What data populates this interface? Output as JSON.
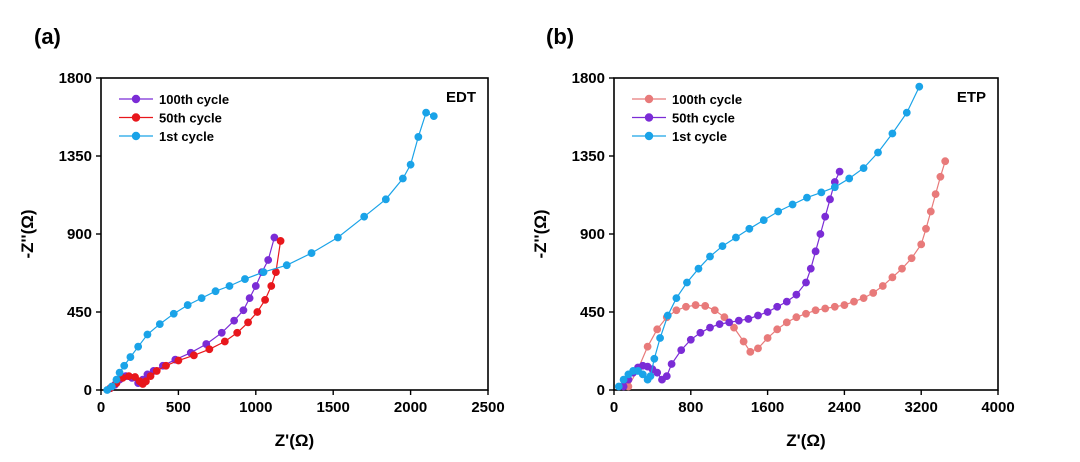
{
  "chart_data": [
    {
      "type": "scatter",
      "panel_label": "(a)",
      "tag": "EDT",
      "xlabel": "Z'(Ω)",
      "ylabel": "-Z''(Ω)",
      "xlim": [
        0,
        2500
      ],
      "ylim": [
        0,
        1800
      ],
      "xticks": [
        "0",
        "500",
        "1000",
        "1500",
        "2000",
        "2500"
      ],
      "yticks": [
        "0",
        "450",
        "900",
        "1350",
        "1800"
      ],
      "legend_position": "top-left",
      "series": [
        {
          "name": "100th cycle",
          "color": "#7b2cd6",
          "x": [
            60,
            90,
            120,
            160,
            200,
            240,
            270,
            300,
            340,
            400,
            480,
            580,
            680,
            780,
            860,
            920,
            960,
            1000,
            1040,
            1080,
            1120
          ],
          "y": [
            10,
            30,
            60,
            80,
            70,
            40,
            60,
            90,
            110,
            140,
            175,
            215,
            265,
            330,
            400,
            460,
            530,
            600,
            680,
            750,
            880
          ]
        },
        {
          "name": "50th cycle",
          "color": "#e8171c",
          "x": [
            60,
            100,
            140,
            180,
            220,
            250,
            270,
            290,
            320,
            360,
            420,
            500,
            600,
            700,
            800,
            880,
            950,
            1010,
            1060,
            1100,
            1130,
            1160
          ],
          "y": [
            10,
            40,
            70,
            80,
            75,
            50,
            35,
            50,
            80,
            110,
            140,
            170,
            200,
            235,
            280,
            330,
            390,
            450,
            520,
            600,
            680,
            860
          ]
        },
        {
          "name": "1st cycle",
          "color": "#1aa3e8",
          "x": [
            40,
            70,
            100,
            120,
            150,
            190,
            240,
            300,
            380,
            470,
            560,
            650,
            740,
            830,
            930,
            1050,
            1200,
            1360,
            1530,
            1700,
            1840,
            1950,
            2000,
            2050,
            2100,
            2150
          ],
          "y": [
            0,
            20,
            60,
            100,
            140,
            190,
            250,
            320,
            380,
            440,
            490,
            530,
            570,
            600,
            640,
            680,
            720,
            790,
            880,
            1000,
            1100,
            1220,
            1300,
            1460,
            1600,
            1580
          ]
        }
      ]
    },
    {
      "type": "scatter",
      "panel_label": "(b)",
      "tag": "ETP",
      "xlabel": "Z'(Ω)",
      "ylabel": "-Z''(Ω)",
      "xlim": [
        0,
        4000
      ],
      "ylim": [
        0,
        1800
      ],
      "xticks": [
        "0",
        "800",
        "1600",
        "2400",
        "3200",
        "4000"
      ],
      "yticks": [
        "0",
        "450",
        "900",
        "1350",
        "1800"
      ],
      "legend_position": "top-left",
      "series": [
        {
          "name": "100th cycle",
          "color": "#e87a7a",
          "x": [
            150,
            250,
            350,
            450,
            550,
            650,
            750,
            850,
            950,
            1050,
            1150,
            1250,
            1350,
            1420,
            1500,
            1600,
            1700,
            1800,
            1900,
            2000,
            2100,
            2200,
            2300,
            2400,
            2500,
            2600,
            2700,
            2800,
            2900,
            3000,
            3100,
            3200,
            3250,
            3300,
            3350,
            3400,
            3450
          ],
          "y": [
            20,
            120,
            250,
            350,
            420,
            460,
            480,
            490,
            485,
            460,
            420,
            360,
            280,
            220,
            240,
            300,
            350,
            390,
            420,
            440,
            460,
            470,
            480,
            490,
            510,
            530,
            560,
            600,
            650,
            700,
            760,
            840,
            930,
            1030,
            1130,
            1230,
            1320
          ]
        },
        {
          "name": "50th cycle",
          "color": "#7b2cd6",
          "x": [
            100,
            150,
            200,
            250,
            300,
            350,
            400,
            450,
            500,
            550,
            600,
            700,
            800,
            900,
            1000,
            1100,
            1200,
            1300,
            1400,
            1500,
            1600,
            1700,
            1800,
            1900,
            2000,
            2050,
            2100,
            2150,
            2200,
            2250,
            2300,
            2350
          ],
          "y": [
            20,
            60,
            100,
            130,
            140,
            135,
            120,
            100,
            60,
            80,
            150,
            230,
            290,
            330,
            360,
            380,
            390,
            400,
            410,
            430,
            450,
            480,
            510,
            550,
            620,
            700,
            800,
            900,
            1000,
            1100,
            1200,
            1260
          ]
        },
        {
          "name": "1st cycle",
          "color": "#1aa3e8",
          "x": [
            50,
            100,
            150,
            200,
            250,
            300,
            350,
            380,
            420,
            480,
            560,
            650,
            760,
            880,
            1000,
            1130,
            1270,
            1410,
            1560,
            1710,
            1860,
            2010,
            2160,
            2300,
            2450,
            2600,
            2750,
            2900,
            3050,
            3180
          ],
          "y": [
            20,
            60,
            90,
            110,
            110,
            90,
            60,
            80,
            180,
            300,
            430,
            530,
            620,
            700,
            770,
            830,
            880,
            930,
            980,
            1030,
            1070,
            1110,
            1140,
            1170,
            1220,
            1280,
            1370,
            1480,
            1600,
            1750
          ]
        }
      ]
    }
  ]
}
